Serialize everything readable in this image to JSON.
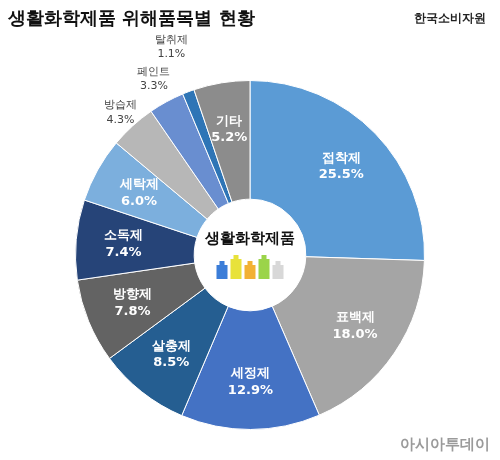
{
  "chart_data": {
    "type": "doughnut",
    "title": "생활화학제품 위해품목별 현황",
    "source": "한국소비자원",
    "center_label": "생활화학제품",
    "watermark": "아시아투데이",
    "categories": [
      "접착제",
      "표백제",
      "세정제",
      "살충제",
      "방향제",
      "소독제",
      "세탁제",
      "방습제",
      "페인트",
      "탈취제",
      "기타"
    ],
    "values": [
      25.5,
      18.0,
      12.9,
      8.5,
      7.8,
      7.4,
      6.0,
      4.3,
      3.3,
      1.1,
      5.2
    ],
    "value_labels": [
      "25.5%",
      "18.0%",
      "12.9%",
      "8.5%",
      "7.8%",
      "7.4%",
      "6.0%",
      "4.3%",
      "3.3%",
      "1.1%",
      "5.2%"
    ],
    "colors": [
      "#5b9bd5",
      "#a5a5a5",
      "#4472c4",
      "#255e91",
      "#636363",
      "#264478",
      "#7cafdd",
      "#b7b7b7",
      "#698ed0",
      "#2e75b6",
      "#8c8c8c"
    ],
    "data_labels": true
  }
}
